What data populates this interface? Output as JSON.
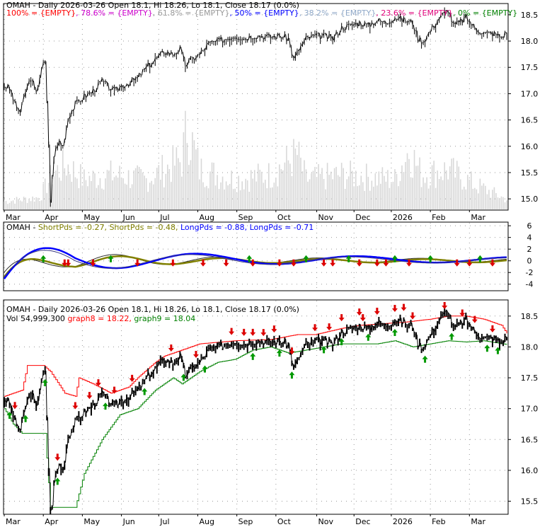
{
  "colors": {
    "price": "#000000",
    "volume": "#d8d8d8",
    "fib100": "#ff0000",
    "fib786": "#cc00cc",
    "fib618": "#9a9a9a",
    "fib50": "#0000ff",
    "fib382": "#8fa8c8",
    "fib236": "#e0007a",
    "fib0": "#008000",
    "shortPds1": "#2b2b2b",
    "shortPds2": "#808000",
    "longPds1": "#0000ff",
    "longPds2": "#3a3a80",
    "graph8": "#ff0000",
    "graph9": "#008000",
    "arrowUp": "#009900",
    "arrowDown": "#dd0000"
  },
  "chart_data": [
    {
      "id": "price",
      "type": "line",
      "title": "OMAH - Daily 2026-03-26 Open 18.1, Hi 18.26, Lo 18.1, Close 18.17 (0.0%)",
      "legend": [
        {
          "label": "100% = {EMPTY}",
          "color": "#ff0000"
        },
        {
          "label": "78.6% = {EMPTY}",
          "color": "#cc00cc"
        },
        {
          "label": "61.8% = {EMPTY}",
          "color": "#9a9a9a"
        },
        {
          "label": "50% = {EMPTY}",
          "color": "#0000ff"
        },
        {
          "label": "38.2% = {EMPTY}",
          "color": "#8fa8c8"
        },
        {
          "label": "23.6% = {EMPTY}",
          "color": "#e0007a"
        },
        {
          "label": "0% = {EMPTY}",
          "color": "#008000"
        }
      ],
      "x_labels": [
        "Mar",
        "Apr",
        "May",
        "Jun",
        "Jul",
        "Aug",
        "Sep",
        "Oct",
        "Nov",
        "Dec",
        "2026",
        "Feb",
        "Mar"
      ],
      "y_ticks": [
        "18.5",
        "18.0",
        "17.5",
        "17.0",
        "16.5",
        "16.0",
        "15.5",
        "15.0"
      ],
      "ylim": [
        14.8,
        18.7
      ],
      "grid": true,
      "price_keypoints": [
        [
          0,
          17.15
        ],
        [
          3,
          17.1
        ],
        [
          6,
          16.8
        ],
        [
          9,
          16.65
        ],
        [
          12,
          17.05
        ],
        [
          15,
          17.3
        ],
        [
          18,
          17.0
        ],
        [
          21,
          17.5
        ],
        [
          23,
          17.6
        ],
        [
          25,
          16.05
        ],
        [
          26,
          14.95
        ],
        [
          28,
          15.85
        ],
        [
          31,
          16.1
        ],
        [
          33,
          16.0
        ],
        [
          36,
          16.55
        ],
        [
          40,
          16.8
        ],
        [
          45,
          16.95
        ],
        [
          50,
          17.05
        ],
        [
          55,
          17.25
        ],
        [
          58,
          17.15
        ],
        [
          62,
          17.05
        ],
        [
          66,
          17.15
        ],
        [
          70,
          17.2
        ],
        [
          75,
          17.3
        ],
        [
          80,
          17.5
        ],
        [
          85,
          17.65
        ],
        [
          90,
          17.8
        ],
        [
          95,
          17.75
        ],
        [
          99,
          17.85
        ],
        [
          102,
          17.55
        ],
        [
          105,
          17.65
        ],
        [
          110,
          17.75
        ],
        [
          115,
          17.95
        ],
        [
          120,
          18.0
        ],
        [
          125,
          18.05
        ],
        [
          130,
          18.1
        ],
        [
          135,
          18.05
        ],
        [
          140,
          18.1
        ],
        [
          145,
          18.1
        ],
        [
          150,
          18.08
        ],
        [
          155,
          18.1
        ],
        [
          160,
          18.05
        ],
        [
          163,
          17.65
        ],
        [
          166,
          17.85
        ],
        [
          170,
          18.05
        ],
        [
          175,
          18.1
        ],
        [
          180,
          18.1
        ],
        [
          185,
          18.05
        ],
        [
          190,
          18.25
        ],
        [
          195,
          18.3
        ],
        [
          200,
          18.35
        ],
        [
          205,
          18.3
        ],
        [
          210,
          18.4
        ],
        [
          215,
          18.35
        ],
        [
          220,
          18.45
        ],
        [
          225,
          18.4
        ],
        [
          230,
          18.35
        ],
        [
          233,
          18.05
        ],
        [
          236,
          18.0
        ],
        [
          240,
          18.2
        ],
        [
          245,
          18.45
        ],
        [
          250,
          18.6
        ],
        [
          253,
          18.3
        ],
        [
          256,
          18.35
        ],
        [
          260,
          18.45
        ],
        [
          265,
          18.25
        ],
        [
          270,
          18.15
        ],
        [
          275,
          18.15
        ],
        [
          280,
          18.08
        ],
        [
          283,
          18.17
        ]
      ],
      "volume_keypoints": [
        [
          0,
          0.08
        ],
        [
          20,
          0.12
        ],
        [
          27,
          0.35
        ],
        [
          35,
          0.45
        ],
        [
          45,
          0.3
        ],
        [
          60,
          0.35
        ],
        [
          80,
          0.3
        ],
        [
          100,
          0.5
        ],
        [
          103,
          0.85
        ],
        [
          110,
          0.4
        ],
        [
          130,
          0.3
        ],
        [
          150,
          0.35
        ],
        [
          165,
          0.55
        ],
        [
          170,
          0.3
        ],
        [
          190,
          0.35
        ],
        [
          220,
          0.3
        ],
        [
          228,
          0.6
        ],
        [
          235,
          0.35
        ],
        [
          250,
          0.4
        ],
        [
          265,
          0.25
        ],
        [
          283,
          0.1
        ]
      ]
    },
    {
      "id": "oscillator",
      "type": "line",
      "title": "OMAH - ShortPds = -0.27, ShortPds = -0.48, LongPds = -0.88, LongPds = -0.71",
      "legend": [
        {
          "label": "OMAH - ",
          "color": "#000000"
        },
        {
          "label": "ShortPds = -0.27,",
          "color": "#808000"
        },
        {
          "label": "ShortPds = -0.48,",
          "color": "#808000"
        },
        {
          "label": "LongPds = -0.88,",
          "color": "#0000ff"
        },
        {
          "label": "LongPds = -0.71",
          "color": "#0000ff"
        }
      ],
      "y_ticks": [
        "6",
        "4",
        "2",
        "0",
        "-2",
        "-4"
      ],
      "ylim": [
        -5,
        6.5
      ],
      "series": [
        {
          "name": "ShortPds",
          "value": -0.27
        },
        {
          "name": "ShortPds",
          "value": -0.48
        },
        {
          "name": "LongPds",
          "value": -0.88
        },
        {
          "name": "LongPds",
          "value": -0.71
        }
      ],
      "up_arrows": [
        22,
        60,
        138,
        170,
        194,
        220,
        240,
        268
      ],
      "down_arrows": [
        34,
        36,
        50,
        75,
        95,
        112,
        125,
        140,
        155,
        163,
        180,
        185,
        200,
        210,
        215,
        228,
        255,
        262,
        275
      ]
    },
    {
      "id": "price2",
      "type": "line",
      "title": "OMAH - Daily 2026-03-26 Open 18.1, Hi 18.26, Lo 18.1, Close 18.17 (0.0%)",
      "subtitle_parts": [
        {
          "label": "Vol 54,999,300",
          "color": "#000000"
        },
        {
          "label": "graph8 = 18.22,",
          "color": "#ff0000"
        },
        {
          "label": "graph9 = 18.04",
          "color": "#008000"
        }
      ],
      "x_labels": [
        "Mar",
        "Apr",
        "May",
        "Jun",
        "Jul",
        "Aug",
        "Sep",
        "Oct",
        "Nov",
        "Dec",
        "2026",
        "Feb",
        "Mar"
      ],
      "y_ticks": [
        "18.5",
        "18.0",
        "17.5",
        "17.0",
        "16.5",
        "16.0",
        "15.5"
      ],
      "ylim": [
        15.3,
        18.75
      ],
      "graph8_keypoints": [
        [
          0,
          17.2
        ],
        [
          10,
          17.3
        ],
        [
          13,
          17.7
        ],
        [
          22,
          17.7
        ],
        [
          26,
          17.6
        ],
        [
          34,
          17.25
        ],
        [
          40,
          17.2
        ],
        [
          42,
          17.5
        ],
        [
          50,
          17.4
        ],
        [
          60,
          17.25
        ],
        [
          70,
          17.35
        ],
        [
          75,
          17.5
        ],
        [
          85,
          17.75
        ],
        [
          90,
          17.85
        ],
        [
          100,
          17.95
        ],
        [
          110,
          18.05
        ],
        [
          130,
          18.1
        ],
        [
          150,
          18.12
        ],
        [
          165,
          18.2
        ],
        [
          175,
          18.2
        ],
        [
          190,
          18.3
        ],
        [
          200,
          18.35
        ],
        [
          215,
          18.38
        ],
        [
          225,
          18.4
        ],
        [
          240,
          18.45
        ],
        [
          250,
          18.5
        ],
        [
          260,
          18.5
        ],
        [
          270,
          18.45
        ],
        [
          280,
          18.35
        ],
        [
          283,
          18.22
        ]
      ],
      "graph9_keypoints": [
        [
          0,
          17.0
        ],
        [
          5,
          16.75
        ],
        [
          10,
          16.6
        ],
        [
          23,
          16.6
        ],
        [
          26,
          15.4
        ],
        [
          40,
          15.4
        ],
        [
          45,
          15.95
        ],
        [
          55,
          16.5
        ],
        [
          65,
          16.9
        ],
        [
          75,
          17.0
        ],
        [
          85,
          17.3
        ],
        [
          95,
          17.5
        ],
        [
          100,
          17.4
        ],
        [
          110,
          17.6
        ],
        [
          120,
          17.75
        ],
        [
          130,
          17.8
        ],
        [
          140,
          17.95
        ],
        [
          150,
          18.0
        ],
        [
          160,
          17.9
        ],
        [
          170,
          17.95
        ],
        [
          180,
          18.0
        ],
        [
          190,
          18.05
        ],
        [
          200,
          18.05
        ],
        [
          210,
          18.05
        ],
        [
          220,
          18.1
        ],
        [
          230,
          18.0
        ],
        [
          240,
          18.05
        ],
        [
          250,
          18.1
        ],
        [
          260,
          18.08
        ],
        [
          270,
          18.1
        ],
        [
          283,
          18.04
        ]
      ],
      "up_arrows": [
        3,
        12,
        23,
        30,
        57,
        79,
        101,
        113,
        140,
        155,
        162,
        180,
        190,
        205,
        220,
        237,
        252,
        272,
        278
      ],
      "down_arrows": [
        6,
        30,
        40,
        48,
        53,
        62,
        72,
        94,
        108,
        128,
        135,
        140,
        146,
        152,
        162,
        175,
        183,
        190,
        200,
        202,
        210,
        220,
        225,
        230,
        248,
        258,
        265,
        275
      ]
    }
  ]
}
